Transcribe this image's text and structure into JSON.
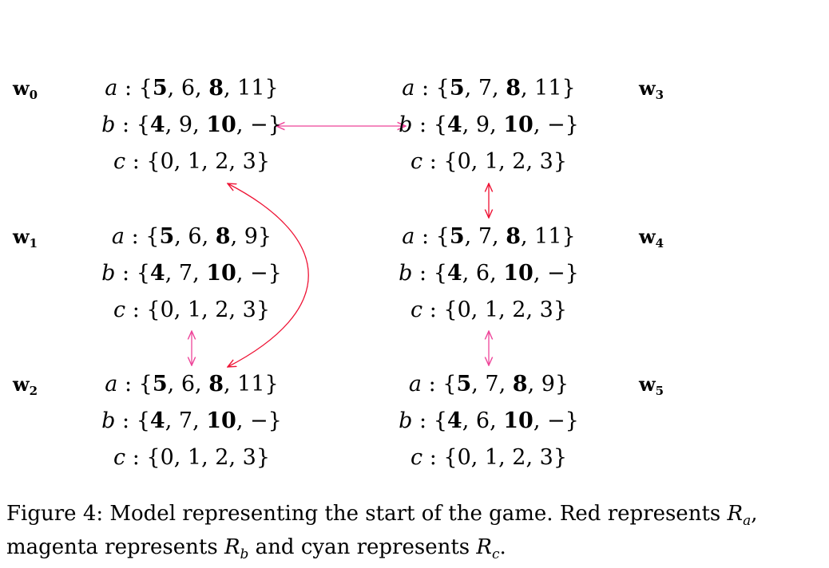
{
  "worlds": [
    {
      "id": "w0",
      "name": "w",
      "index": "0",
      "sets": [
        {
          "label": "a",
          "values": [
            {
              "v": "5",
              "bold": true
            },
            {
              "v": "6",
              "bold": false
            },
            {
              "v": "8",
              "bold": true
            },
            {
              "v": "11",
              "bold": false
            }
          ]
        },
        {
          "label": "b",
          "values": [
            {
              "v": "4",
              "bold": true
            },
            {
              "v": "9",
              "bold": false
            },
            {
              "v": "10",
              "bold": true
            },
            {
              "v": "−",
              "bold": false
            }
          ]
        },
        {
          "label": "c",
          "values": [
            {
              "v": "0",
              "bold": false
            },
            {
              "v": "1",
              "bold": false
            },
            {
              "v": "2",
              "bold": false
            },
            {
              "v": "3",
              "bold": false
            }
          ]
        }
      ]
    },
    {
      "id": "w1",
      "name": "w",
      "index": "1",
      "sets": [
        {
          "label": "a",
          "values": [
            {
              "v": "5",
              "bold": true
            },
            {
              "v": "6",
              "bold": false
            },
            {
              "v": "8",
              "bold": true
            },
            {
              "v": "9",
              "bold": false
            }
          ]
        },
        {
          "label": "b",
          "values": [
            {
              "v": "4",
              "bold": true
            },
            {
              "v": "7",
              "bold": false
            },
            {
              "v": "10",
              "bold": true
            },
            {
              "v": "−",
              "bold": false
            }
          ]
        },
        {
          "label": "c",
          "values": [
            {
              "v": "0",
              "bold": false
            },
            {
              "v": "1",
              "bold": false
            },
            {
              "v": "2",
              "bold": false
            },
            {
              "v": "3",
              "bold": false
            }
          ]
        }
      ]
    },
    {
      "id": "w2",
      "name": "w",
      "index": "2",
      "sets": [
        {
          "label": "a",
          "values": [
            {
              "v": "5",
              "bold": true
            },
            {
              "v": "6",
              "bold": false
            },
            {
              "v": "8",
              "bold": true
            },
            {
              "v": "11",
              "bold": false
            }
          ]
        },
        {
          "label": "b",
          "values": [
            {
              "v": "4",
              "bold": true
            },
            {
              "v": "7",
              "bold": false
            },
            {
              "v": "10",
              "bold": true
            },
            {
              "v": "−",
              "bold": false
            }
          ]
        },
        {
          "label": "c",
          "values": [
            {
              "v": "0",
              "bold": false
            },
            {
              "v": "1",
              "bold": false
            },
            {
              "v": "2",
              "bold": false
            },
            {
              "v": "3",
              "bold": false
            }
          ]
        }
      ]
    },
    {
      "id": "w3",
      "name": "w",
      "index": "3",
      "sets": [
        {
          "label": "a",
          "values": [
            {
              "v": "5",
              "bold": true
            },
            {
              "v": "7",
              "bold": false
            },
            {
              "v": "8",
              "bold": true
            },
            {
              "v": "11",
              "bold": false
            }
          ]
        },
        {
          "label": "b",
          "values": [
            {
              "v": "4",
              "bold": true
            },
            {
              "v": "9",
              "bold": false
            },
            {
              "v": "10",
              "bold": true
            },
            {
              "v": "−",
              "bold": false
            }
          ]
        },
        {
          "label": "c",
          "values": [
            {
              "v": "0",
              "bold": false
            },
            {
              "v": "1",
              "bold": false
            },
            {
              "v": "2",
              "bold": false
            },
            {
              "v": "3",
              "bold": false
            }
          ]
        }
      ]
    },
    {
      "id": "w4",
      "name": "w",
      "index": "4",
      "sets": [
        {
          "label": "a",
          "values": [
            {
              "v": "5",
              "bold": true
            },
            {
              "v": "7",
              "bold": false
            },
            {
              "v": "8",
              "bold": true
            },
            {
              "v": "11",
              "bold": false
            }
          ]
        },
        {
          "label": "b",
          "values": [
            {
              "v": "4",
              "bold": true
            },
            {
              "v": "6",
              "bold": false
            },
            {
              "v": "10",
              "bold": true
            },
            {
              "v": "−",
              "bold": false
            }
          ]
        },
        {
          "label": "c",
          "values": [
            {
              "v": "0",
              "bold": false
            },
            {
              "v": "1",
              "bold": false
            },
            {
              "v": "2",
              "bold": false
            },
            {
              "v": "3",
              "bold": false
            }
          ]
        }
      ]
    },
    {
      "id": "w5",
      "name": "w",
      "index": "5",
      "sets": [
        {
          "label": "a",
          "values": [
            {
              "v": "5",
              "bold": true
            },
            {
              "v": "7",
              "bold": false
            },
            {
              "v": "8",
              "bold": true
            },
            {
              "v": "9",
              "bold": false
            }
          ]
        },
        {
          "label": "b",
          "values": [
            {
              "v": "4",
              "bold": true
            },
            {
              "v": "6",
              "bold": false
            },
            {
              "v": "10",
              "bold": true
            },
            {
              "v": "−",
              "bold": false
            }
          ]
        },
        {
          "label": "c",
          "values": [
            {
              "v": "0",
              "bold": false
            },
            {
              "v": "1",
              "bold": false
            },
            {
              "v": "2",
              "bold": false
            },
            {
              "v": "3",
              "bold": false
            }
          ]
        }
      ]
    }
  ],
  "relations": [
    {
      "from": "w0",
      "to": "w3",
      "relation": "b",
      "color": "#ee4499"
    },
    {
      "from": "w3",
      "to": "w4",
      "relation": "a",
      "color": "#ee1133"
    },
    {
      "from": "w0",
      "to": "w2",
      "relation": "a",
      "color": "#ee1133"
    },
    {
      "from": "w1",
      "to": "w2",
      "relation": "b",
      "color": "#ee4499"
    },
    {
      "from": "w4",
      "to": "w5",
      "relation": "b",
      "color": "#ee4499"
    }
  ],
  "caption": {
    "lead": "Figure 4: Model representing the start of the game. Red represents ",
    "r1": "R",
    "r1_sub": "a",
    "mid1": ", magenta represents ",
    "r2": "R",
    "r2_sub": "b",
    "mid2": " and cyan represents ",
    "r3": "R",
    "r3_sub": "c",
    "end": "."
  }
}
